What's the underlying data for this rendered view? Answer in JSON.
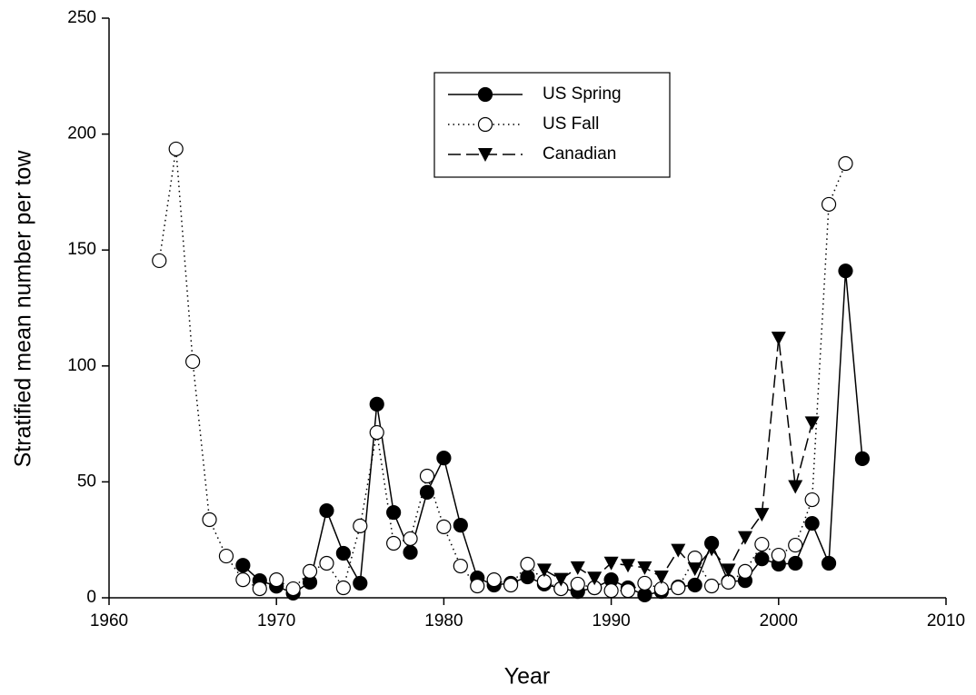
{
  "chart_data": {
    "type": "line",
    "x_label": "Year",
    "y_label": "Stratified mean number per tow",
    "xlim": [
      1960,
      2010
    ],
    "xticks": [
      1960,
      1970,
      1980,
      1990,
      2000,
      2010
    ],
    "ylim": [
      0,
      250
    ],
    "yticks": [
      0,
      50,
      100,
      150,
      200,
      250
    ],
    "series": [
      {
        "name": "US Spring",
        "color": "#000000",
        "marker": "filled-circle",
        "linestyle": "solid",
        "x": [
          1968,
          1969,
          1970,
          1971,
          1972,
          1973,
          1974,
          1975,
          1976,
          1977,
          1978,
          1979,
          1980,
          1981,
          1982,
          1983,
          1984,
          1985,
          1986,
          1987,
          1988,
          1989,
          1990,
          1991,
          1992,
          1993,
          1994,
          1995,
          1996,
          1997,
          1998,
          1999,
          2000,
          2001,
          2002,
          2003,
          2004,
          2005
        ],
        "values": [
          14,
          7.4,
          5,
          2,
          6.7,
          37.6,
          19.2,
          6.3,
          83.5,
          36.8,
          19.6,
          45.5,
          60.3,
          31.3,
          8.6,
          5.5,
          6.3,
          9,
          5.9,
          4,
          2.7,
          4.3,
          7.8,
          4.3,
          1.2,
          2.7,
          4.7,
          5.5,
          23.5,
          7,
          7.4,
          16.8,
          14.5,
          14.9,
          32.1,
          14.9,
          141,
          60
        ]
      },
      {
        "name": "US Fall",
        "color": "#000000",
        "marker": "open-circle",
        "linestyle": "dotted",
        "x": [
          1963,
          1964,
          1965,
          1966,
          1967,
          1968,
          1969,
          1970,
          1971,
          1972,
          1973,
          1974,
          1975,
          1976,
          1977,
          1978,
          1979,
          1980,
          1981,
          1982,
          1983,
          1984,
          1985,
          1986,
          1987,
          1988,
          1989,
          1990,
          1991,
          1992,
          1993,
          1994,
          1995,
          1996,
          1997,
          1998,
          1999,
          2000,
          2001,
          2002,
          2003,
          2004
        ],
        "values": [
          145.4,
          193.6,
          101.9,
          33.7,
          18,
          7.8,
          3.9,
          7.8,
          3.9,
          11.4,
          14.9,
          4.3,
          31,
          71.3,
          23.5,
          25.5,
          52.5,
          30.6,
          13.7,
          5.1,
          7.8,
          5.5,
          14.5,
          7,
          3.9,
          5.9,
          4.3,
          3.1,
          3.1,
          6.3,
          3.9,
          4.3,
          17.2,
          5.1,
          6.7,
          11.4,
          23.1,
          18.4,
          22.7,
          42.3,
          169.7,
          187.3
        ]
      },
      {
        "name": "Canadian",
        "color": "#000000",
        "marker": "triangle-down",
        "linestyle": "dashed",
        "x": [
          1986,
          1987,
          1988,
          1989,
          1990,
          1991,
          1992,
          1993,
          1994,
          1995,
          1996,
          1997,
          1998,
          1999,
          2000,
          2001,
          2002
        ],
        "values": [
          12,
          8,
          13,
          8.5,
          15,
          14,
          13,
          9,
          20.5,
          12.5,
          21,
          12,
          26,
          36,
          112,
          48,
          75.5
        ]
      }
    ]
  }
}
